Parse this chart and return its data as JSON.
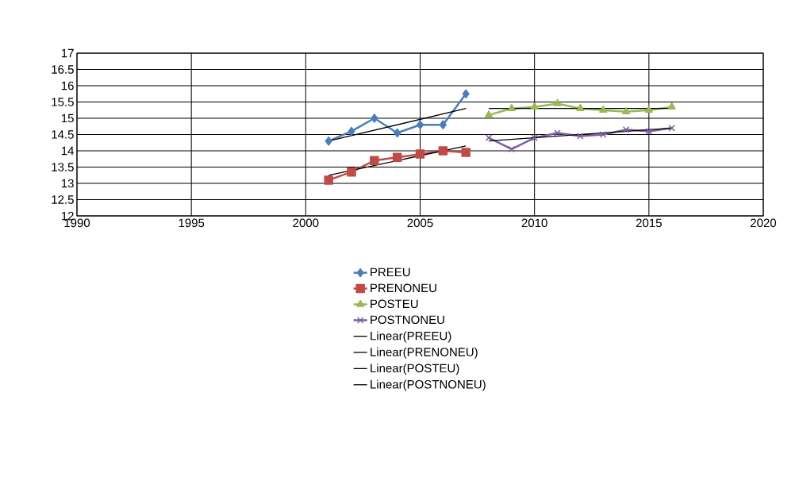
{
  "chart_data": {
    "type": "line",
    "xlim": [
      1990,
      2020
    ],
    "ylim": [
      12,
      17
    ],
    "xticks": [
      1990,
      1995,
      2000,
      2005,
      2010,
      2015,
      2020
    ],
    "yticks": [
      12,
      12.5,
      13,
      13.5,
      14,
      14.5,
      15,
      15.5,
      16,
      16.5,
      17
    ],
    "grid": true,
    "legend": "bottom",
    "series": [
      {
        "name": "PREEU",
        "color": "#4a7ebb",
        "marker": "diamond",
        "x": [
          2001,
          2002,
          2003,
          2004,
          2005,
          2006,
          2007
        ],
        "values": [
          14.3,
          14.6,
          15.0,
          14.55,
          14.8,
          14.8,
          15.75
        ]
      },
      {
        "name": "PRENONEU",
        "color": "#be4b48",
        "marker": "square",
        "x": [
          2001,
          2002,
          2003,
          2004,
          2005,
          2006,
          2007
        ],
        "values": [
          13.1,
          13.35,
          13.7,
          13.8,
          13.9,
          14.0,
          13.95
        ]
      },
      {
        "name": "POSTEU",
        "color": "#98b954",
        "marker": "triangle",
        "x": [
          2008,
          2009,
          2010,
          2011,
          2012,
          2013,
          2014,
          2015,
          2016
        ],
        "values": [
          15.1,
          15.3,
          15.35,
          15.45,
          15.3,
          15.25,
          15.2,
          15.25,
          15.35
        ]
      },
      {
        "name": "POSTNONEU",
        "color": "#7d60a0",
        "marker": "cross",
        "x": [
          2008,
          2009,
          2010,
          2011,
          2012,
          2013,
          2014,
          2015,
          2016
        ],
        "values": [
          14.4,
          14.05,
          14.4,
          14.55,
          14.45,
          14.5,
          14.65,
          14.6,
          14.7
        ]
      },
      {
        "name": "Linear(PREEU)",
        "color": "#000000",
        "marker": "none",
        "x": [
          2001,
          2007
        ],
        "values": [
          14.3,
          15.3
        ]
      },
      {
        "name": "Linear(PRENONEU)",
        "color": "#000000",
        "marker": "none",
        "x": [
          2001,
          2007
        ],
        "values": [
          13.25,
          14.15
        ]
      },
      {
        "name": "Linear(POSTEU)",
        "color": "#000000",
        "marker": "none",
        "x": [
          2008,
          2016
        ],
        "values": [
          15.3,
          15.3
        ]
      },
      {
        "name": "Linear(POSTNONEU)",
        "color": "#000000",
        "marker": "none",
        "x": [
          2008,
          2016
        ],
        "values": [
          14.3,
          14.7
        ]
      }
    ]
  }
}
